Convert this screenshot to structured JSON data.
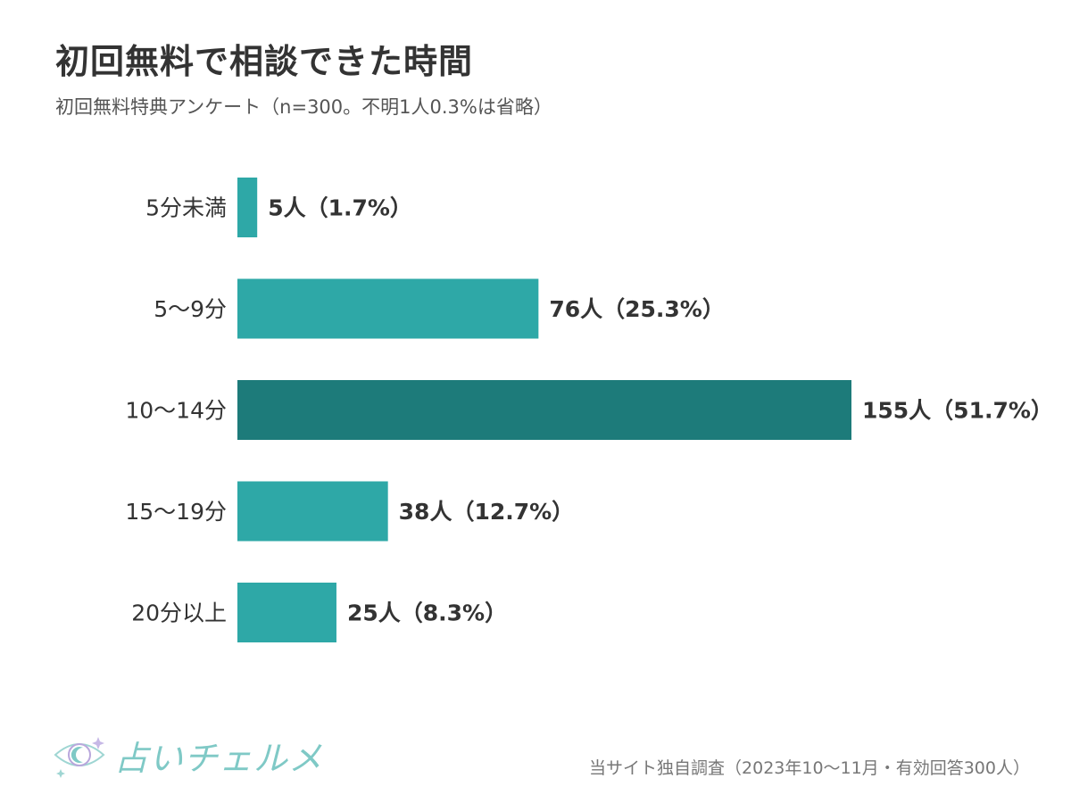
{
  "title": "初回無料で相談できた時間",
  "subtitle": "初回無料特典アンケート（n=300。不明1人0.3%は省略）",
  "footer": "当サイト独自調査（2023年10〜11月・有効回答300人）",
  "logo": {
    "text": "占いチェルメ",
    "icon": "moon-eye-icon"
  },
  "colors": {
    "bar": "#2ea8a7",
    "highlight": "#1d7b7a"
  },
  "chart_data": {
    "type": "bar",
    "orientation": "horizontal",
    "categories": [
      "5分未満",
      "5〜9分",
      "10〜14分",
      "15〜19分",
      "20分以上"
    ],
    "values": [
      5,
      76,
      155,
      38,
      25
    ],
    "percents": [
      1.7,
      25.3,
      51.7,
      12.7,
      8.3
    ],
    "labels": [
      "5人（1.7%）",
      "76人（25.3%）",
      "155人（51.7%）",
      "38人（12.7%）",
      "25人（8.3%）"
    ],
    "highlight_index": 2,
    "xlim": [
      0,
      155
    ],
    "grid": false,
    "legend": false
  }
}
